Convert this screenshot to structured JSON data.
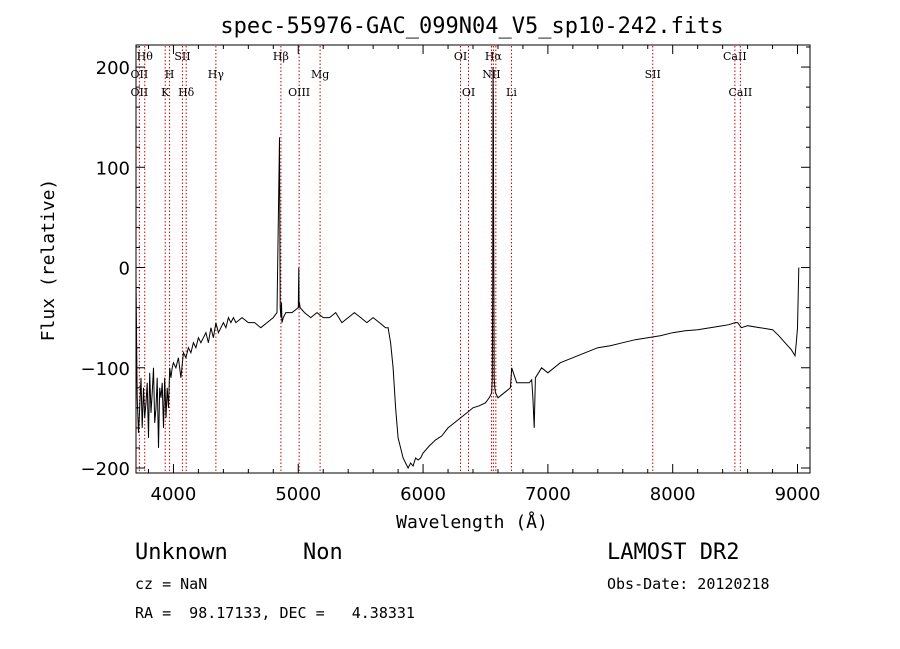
{
  "chart_data": {
    "type": "line",
    "title": "spec-55976-GAC_099N04_V5_sp10-242.fits",
    "xlabel": "Wavelength (Å)",
    "ylabel": "Flux (relative)",
    "xlim": [
      3700,
      9100
    ],
    "ylim": [
      -205,
      222
    ],
    "x_ticks": [
      {
        "value": 4000,
        "label": "4000"
      },
      {
        "value": 5000,
        "label": "5000"
      },
      {
        "value": 6000,
        "label": "6000"
      },
      {
        "value": 7000,
        "label": "7000"
      },
      {
        "value": 8000,
        "label": "8000"
      },
      {
        "value": 9000,
        "label": "9000"
      }
    ],
    "y_ticks": [
      {
        "value": -200,
        "label": "−200"
      },
      {
        "value": -100,
        "label": "−100"
      },
      {
        "value": 0,
        "label": "0"
      },
      {
        "value": 100,
        "label": "100"
      },
      {
        "value": 200,
        "label": "200"
      }
    ],
    "grid": false,
    "line_color": "#000000",
    "marker_color": "#cc0000",
    "series": [
      {
        "x": [
          3700,
          3710,
          3720,
          3730,
          3740,
          3750,
          3760,
          3770,
          3780,
          3790,
          3800,
          3810,
          3820,
          3830,
          3840,
          3850,
          3860,
          3870,
          3880,
          3890,
          3900,
          3910,
          3920,
          3930,
          3940,
          3950,
          3960,
          3970,
          3980,
          3990,
          4000,
          4020,
          4040,
          4060,
          4080,
          4100,
          4120,
          4140,
          4160,
          4180,
          4200,
          4220,
          4240,
          4260,
          4280,
          4300,
          4320,
          4340,
          4360,
          4380,
          4400,
          4420,
          4440,
          4460,
          4480,
          4500,
          4550,
          4600,
          4650,
          4700,
          4750,
          4800,
          4830,
          4850,
          4855,
          4861,
          4866,
          4870,
          4880,
          4900,
          4950,
          5000,
          5004,
          5007,
          5010,
          5015,
          5050,
          5100,
          5150,
          5200,
          5250,
          5300,
          5350,
          5400,
          5450,
          5500,
          5550,
          5600,
          5650,
          5700,
          5720,
          5740,
          5760,
          5780,
          5800,
          5820,
          5840,
          5860,
          5880,
          5900,
          5920,
          5940,
          5960,
          5980,
          6000,
          6050,
          6100,
          6150,
          6200,
          6250,
          6300,
          6350,
          6400,
          6450,
          6500,
          6530,
          6550,
          6555,
          6558,
          6560,
          6563,
          6566,
          6570,
          6575,
          6580,
          6600,
          6650,
          6700,
          6710,
          6750,
          6800,
          6850,
          6870,
          6880,
          6890,
          6900,
          6950,
          7000,
          7100,
          7200,
          7300,
          7400,
          7500,
          7600,
          7700,
          7800,
          7900,
          8000,
          8100,
          8200,
          8300,
          8400,
          8450,
          8500,
          8520,
          8550,
          8600,
          8700,
          8800,
          8850,
          8900,
          8950,
          8980,
          8990,
          9000,
          9010
        ],
        "y": [
          -10,
          -130,
          -165,
          -140,
          -110,
          -160,
          -120,
          -150,
          -135,
          -115,
          -170,
          -105,
          -145,
          -125,
          -100,
          -155,
          -140,
          -110,
          -180,
          -120,
          -130,
          -115,
          -160,
          -110,
          -150,
          -120,
          -140,
          -100,
          -110,
          -100,
          -95,
          -100,
          -90,
          -110,
          -85,
          -90,
          -80,
          -85,
          -75,
          -80,
          -70,
          -75,
          -70,
          -65,
          -75,
          -60,
          -70,
          -55,
          -65,
          -60,
          -55,
          -60,
          -50,
          -55,
          -50,
          -55,
          -50,
          -55,
          -55,
          -60,
          -55,
          -50,
          -45,
          130,
          -40,
          -50,
          -35,
          -55,
          -50,
          -45,
          -45,
          -40,
          0,
          -40,
          -35,
          -40,
          -45,
          -50,
          -45,
          -50,
          -50,
          -45,
          -55,
          -50,
          -45,
          -50,
          -55,
          -50,
          -55,
          -60,
          -60,
          -75,
          -100,
          -140,
          -170,
          -180,
          -190,
          -195,
          -200,
          -195,
          -198,
          -190,
          -192,
          -190,
          -185,
          -178,
          -172,
          -168,
          -160,
          -155,
          -150,
          -145,
          -140,
          -138,
          -135,
          -130,
          -125,
          -110,
          -20,
          200,
          170,
          30,
          -110,
          -120,
          -125,
          -130,
          -125,
          -120,
          -100,
          -115,
          -115,
          -115,
          -112,
          -130,
          -160,
          -110,
          -100,
          -105,
          -95,
          -90,
          -85,
          -80,
          -78,
          -75,
          -72,
          -70,
          -68,
          -65,
          -63,
          -62,
          -60,
          -58,
          -57,
          -55,
          -55,
          -60,
          -58,
          -60,
          -62,
          -68,
          -75,
          -82,
          -88,
          -75,
          -60,
          0
        ]
      }
    ],
    "line_markers": [
      {
        "wavelength": 3727,
        "label": "OII",
        "tier": 1
      },
      {
        "wavelength": 3727,
        "label": "OII",
        "tier": 2
      },
      {
        "wavelength": 3770,
        "label": "Hθ",
        "tier": 0
      },
      {
        "wavelength": 3934,
        "label": "K",
        "tier": 2
      },
      {
        "wavelength": 3969,
        "label": "H",
        "tier": 1
      },
      {
        "wavelength": 4072,
        "label": "SII",
        "tier": 0
      },
      {
        "wavelength": 4102,
        "label": "Hδ",
        "tier": 2
      },
      {
        "wavelength": 4340,
        "label": "Hγ",
        "tier": 1
      },
      {
        "wavelength": 4861,
        "label": "Hβ",
        "tier": 0
      },
      {
        "wavelength": 5007,
        "label": "OIII",
        "tier": 2
      },
      {
        "wavelength": 5175,
        "label": "Mg",
        "tier": 1
      },
      {
        "wavelength": 6300,
        "label": "OI",
        "tier": 0
      },
      {
        "wavelength": 6364,
        "label": "OI",
        "tier": 2
      },
      {
        "wavelength": 6548,
        "label": "NII",
        "tier": 1
      },
      {
        "wavelength": 6563,
        "label": "Hα",
        "tier": 0
      },
      {
        "wavelength": 6583,
        "label": "",
        "tier": 1
      },
      {
        "wavelength": 6708,
        "label": "Li",
        "tier": 2
      },
      {
        "wavelength": 7840,
        "label": "SII",
        "tier": 1
      },
      {
        "wavelength": 8498,
        "label": "CaII",
        "tier": 0
      },
      {
        "wavelength": 8542,
        "label": "CaII",
        "tier": 2
      }
    ]
  },
  "footer": {
    "class_label": "Unknown",
    "subclass_label": "Non",
    "redshift_text": "cz = NaN",
    "coords_text": "RA =  98.17133, DEC =   4.38331",
    "survey_label": "LAMOST DR2",
    "obs_date_text": "Obs-Date: 20120218"
  }
}
